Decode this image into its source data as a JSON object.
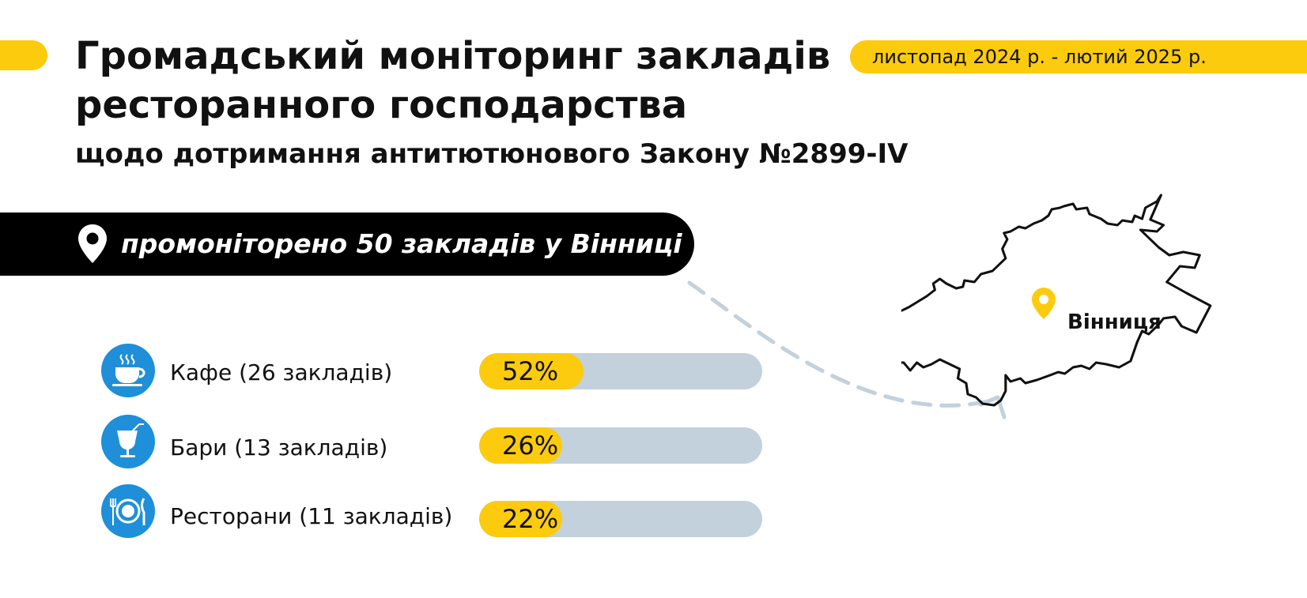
{
  "header": {
    "title_line1": "Громадський моніторинг закладів",
    "title_line2": "ресторанного господарства",
    "subtitle": "щодо дотримання антитютюнового Закону №2899-IV",
    "period": "листопад 2024 р. - лютий 2025 р."
  },
  "banner": {
    "text": "промоніторено 50 закладів у Вінниці",
    "icon": "location-pin-icon"
  },
  "map": {
    "city_label": "Вінниця",
    "pin_icon": "location-pin-icon"
  },
  "colors": {
    "accent_yellow": "#FCCB0E",
    "icon_blue": "#1E8FD8",
    "bar_track": "#C2D1DC",
    "banner_black": "#000000",
    "arrow": "#C2D1DC"
  },
  "chart_data": {
    "type": "bar",
    "orientation": "horizontal",
    "categories": [
      "Кафе (26 закладів)",
      "Бари (13 закладів)",
      "Ресторани (11 закладів)"
    ],
    "values": [
      52,
      26,
      22
    ],
    "value_labels": [
      "52%",
      "26%",
      "22%"
    ],
    "icons": [
      "coffee-cup-icon",
      "cocktail-glass-icon",
      "plate-fork-knife-icon"
    ],
    "xlim": [
      0,
      100
    ],
    "grid": false,
    "legend": "none"
  }
}
